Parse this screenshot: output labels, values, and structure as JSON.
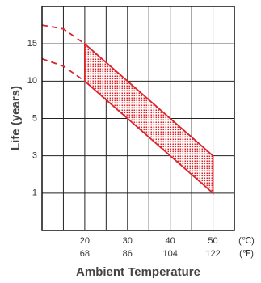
{
  "chart_data": {
    "type": "band",
    "xlabel": "Ambient Temperature",
    "ylabel": "Life (years)",
    "x_unit": "(℃)",
    "x2_unit": "(℉)",
    "xlim": [
      10,
      55
    ],
    "xticks": [
      20,
      30,
      40,
      50
    ],
    "x2ticks": [
      68,
      86,
      104,
      122
    ],
    "xgrid": [
      10,
      15,
      20,
      25,
      30,
      35,
      40,
      45,
      50,
      55
    ],
    "ylim": [
      0,
      20
    ],
    "yticks": [
      1,
      3,
      5,
      10,
      15
    ],
    "ygrid": [
      0,
      1,
      3,
      5,
      10,
      15,
      20
    ],
    "color": "#d9252b",
    "band": {
      "x": [
        20,
        50
      ],
      "upper": [
        15,
        3
      ],
      "lower": [
        10,
        1
      ]
    },
    "series": [
      {
        "x": [
          10,
          15,
          20
        ],
        "values": [
          17.5,
          17,
          15
        ],
        "dashed": true
      },
      {
        "x": [
          10,
          15,
          20
        ],
        "values": [
          13,
          12,
          10
        ],
        "dashed": true
      }
    ]
  }
}
